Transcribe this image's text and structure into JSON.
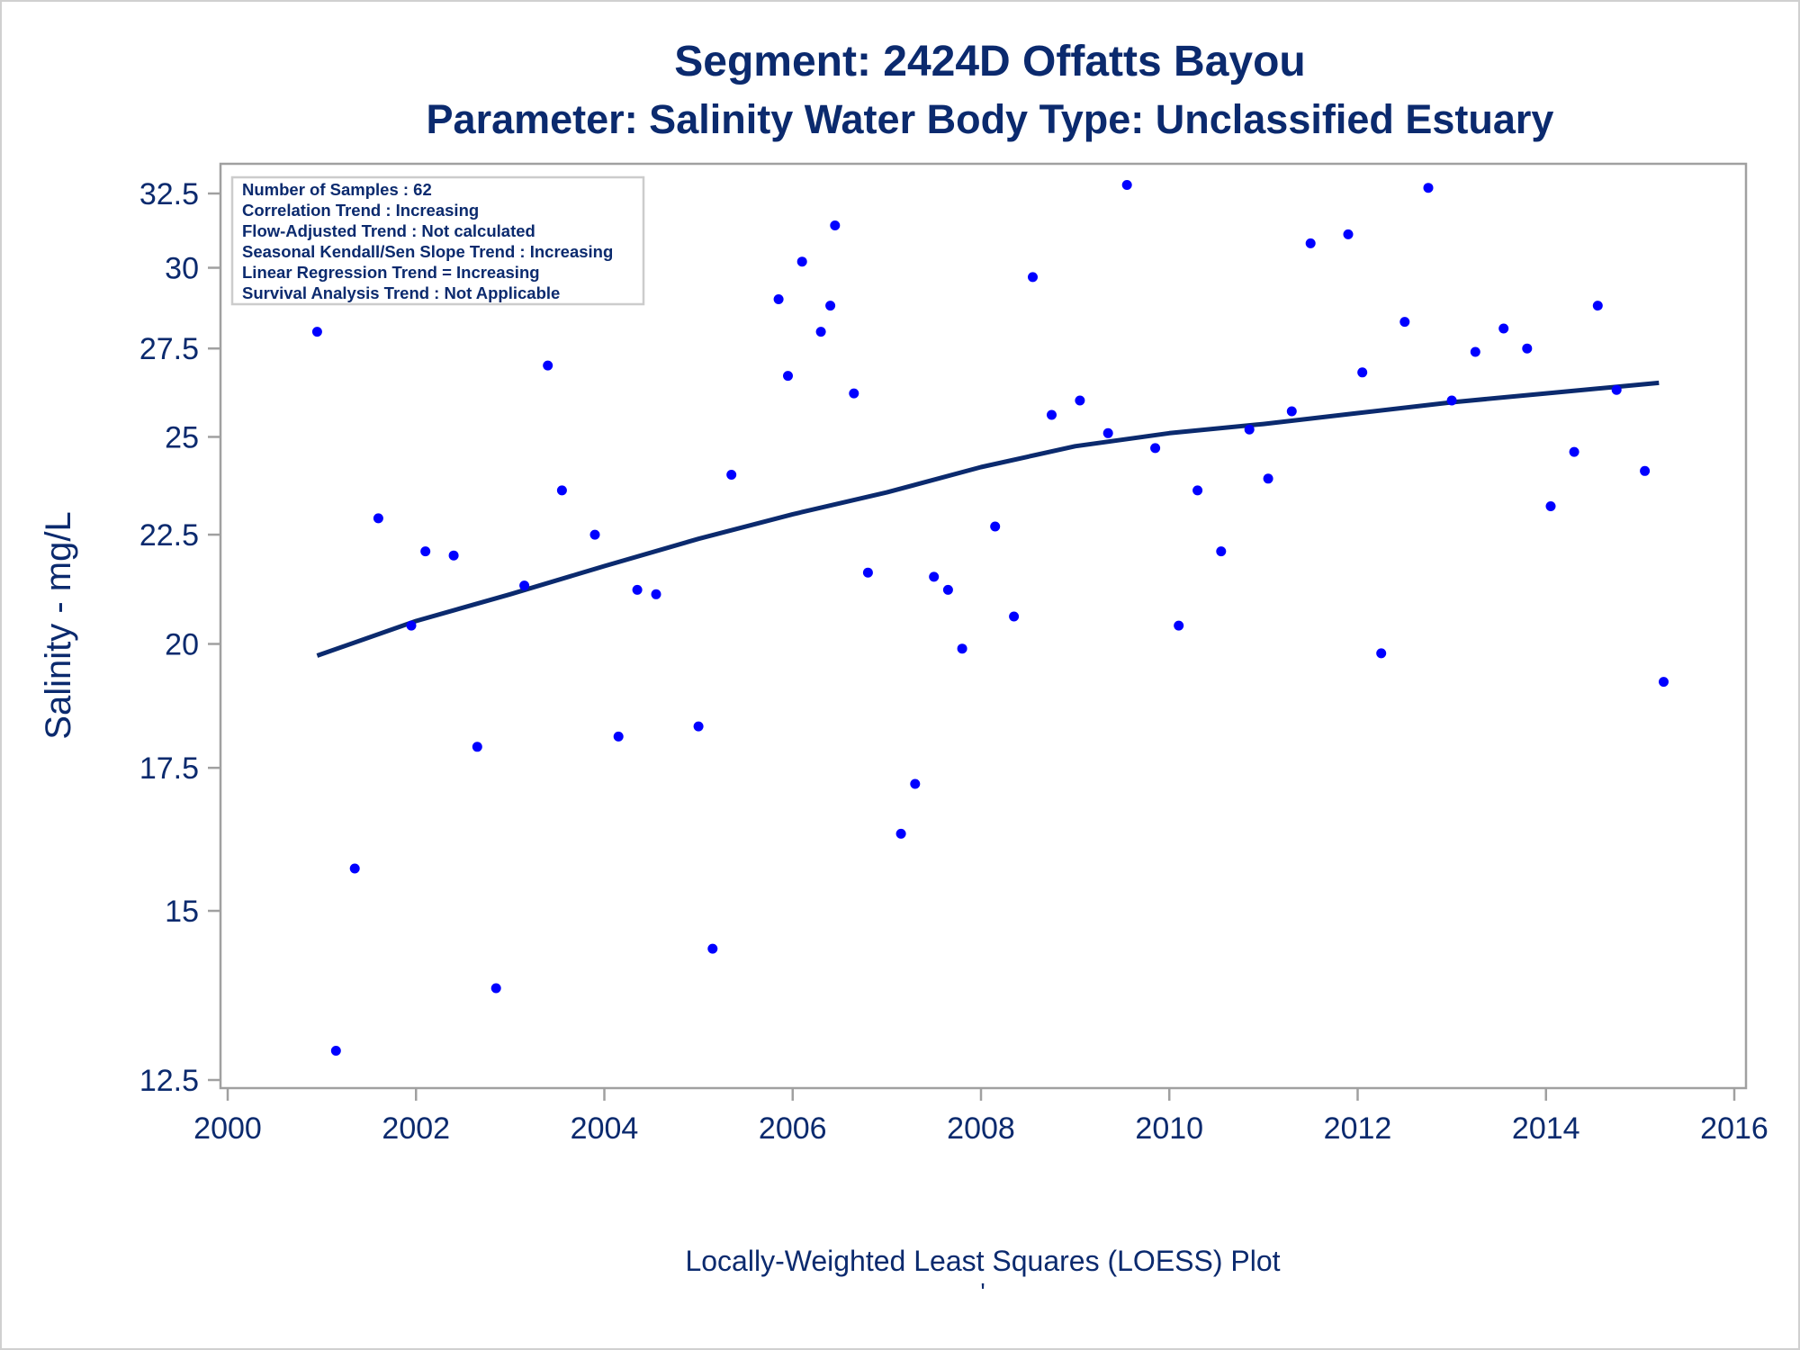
{
  "chart_data": {
    "type": "scatter",
    "title": "Segment: 2424D  Offatts Bayou",
    "subtitle": "Parameter: Salinity   Water Body Type: Unclassified Estuary",
    "xlabel": "Locally-Weighted Least Squares (LOESS) Plot",
    "footnote": "'",
    "ylabel": "Salinity - mg/L",
    "xlim": [
      2000,
      2016
    ],
    "ylim": [
      12.5,
      33
    ],
    "y_scale": "log",
    "x_ticks": [
      2000,
      2002,
      2004,
      2006,
      2008,
      2010,
      2012,
      2014,
      2016
    ],
    "y_ticks": [
      12.5,
      15,
      17.5,
      20,
      22.5,
      25,
      27.5,
      30,
      32.5
    ],
    "y_tick_labels": [
      "12.5",
      "15",
      "17.5",
      "20",
      "22.5",
      "25",
      "27.5",
      "30",
      "32.5"
    ],
    "grid": false,
    "colors": {
      "points": "#0000ff",
      "line": "#0b2a6e",
      "text": "#0b2a6e",
      "frame": "#a0a0a0"
    },
    "info_box": {
      "placement": "top-left",
      "lines": [
        "Number of Samples : 62",
        "Correlation Trend : Increasing",
        "Flow-Adjusted Trend : Not calculated",
        "Seasonal Kendall/Sen Slope Trend : Increasing",
        "Linear Regression Trend = Increasing",
        "Survival Analysis Trend : Not Applicable"
      ]
    },
    "series": [
      {
        "type": "scatter",
        "points": [
          [
            2000.95,
            28.0
          ],
          [
            2001.15,
            12.9
          ],
          [
            2001.35,
            15.7
          ],
          [
            2001.6,
            22.9
          ],
          [
            2001.95,
            20.4
          ],
          [
            2002.1,
            22.1
          ],
          [
            2002.4,
            22.0
          ],
          [
            2002.65,
            17.9
          ],
          [
            2002.85,
            13.8
          ],
          [
            2003.15,
            21.3
          ],
          [
            2003.4,
            27.0
          ],
          [
            2003.55,
            23.6
          ],
          [
            2003.9,
            22.5
          ],
          [
            2004.15,
            18.1
          ],
          [
            2004.35,
            21.2
          ],
          [
            2004.55,
            21.1
          ],
          [
            2005.0,
            18.3
          ],
          [
            2005.15,
            14.4
          ],
          [
            2005.35,
            24.0
          ],
          [
            2005.85,
            29.0
          ],
          [
            2005.95,
            26.7
          ],
          [
            2006.1,
            30.2
          ],
          [
            2006.3,
            28.0
          ],
          [
            2006.4,
            28.8
          ],
          [
            2006.45,
            31.4
          ],
          [
            2006.65,
            26.2
          ],
          [
            2006.8,
            21.6
          ],
          [
            2007.15,
            16.3
          ],
          [
            2007.3,
            17.2
          ],
          [
            2007.5,
            21.5
          ],
          [
            2007.65,
            21.2
          ],
          [
            2007.8,
            19.9
          ],
          [
            2008.15,
            22.7
          ],
          [
            2008.35,
            20.6
          ],
          [
            2008.55,
            29.7
          ],
          [
            2008.75,
            25.6
          ],
          [
            2009.05,
            26.0
          ],
          [
            2009.35,
            25.1
          ],
          [
            2009.55,
            32.8
          ],
          [
            2009.85,
            24.7
          ],
          [
            2010.1,
            20.4
          ],
          [
            2010.3,
            23.6
          ],
          [
            2010.55,
            22.1
          ],
          [
            2010.85,
            25.2
          ],
          [
            2011.05,
            23.9
          ],
          [
            2011.3,
            25.7
          ],
          [
            2011.5,
            30.8
          ],
          [
            2011.9,
            31.1
          ],
          [
            2012.05,
            26.8
          ],
          [
            2012.25,
            19.8
          ],
          [
            2012.5,
            28.3
          ],
          [
            2012.75,
            32.7
          ],
          [
            2013.0,
            26.0
          ],
          [
            2013.25,
            27.4
          ],
          [
            2013.55,
            28.1
          ],
          [
            2013.8,
            27.5
          ],
          [
            2014.05,
            23.2
          ],
          [
            2014.3,
            24.6
          ],
          [
            2014.55,
            28.8
          ],
          [
            2014.75,
            26.3
          ],
          [
            2015.05,
            24.1
          ],
          [
            2015.25,
            19.2
          ]
        ]
      },
      {
        "type": "line",
        "name": "LOESS",
        "points": [
          [
            2000.95,
            19.75
          ],
          [
            2002.0,
            20.5
          ],
          [
            2003.0,
            21.1
          ],
          [
            2004.0,
            21.75
          ],
          [
            2005.0,
            22.4
          ],
          [
            2006.0,
            23.0
          ],
          [
            2007.0,
            23.55
          ],
          [
            2008.0,
            24.2
          ],
          [
            2009.0,
            24.75
          ],
          [
            2010.0,
            25.1
          ],
          [
            2011.0,
            25.35
          ],
          [
            2012.0,
            25.65
          ],
          [
            2013.0,
            25.95
          ],
          [
            2014.0,
            26.2
          ],
          [
            2015.2,
            26.5
          ]
        ]
      }
    ]
  }
}
